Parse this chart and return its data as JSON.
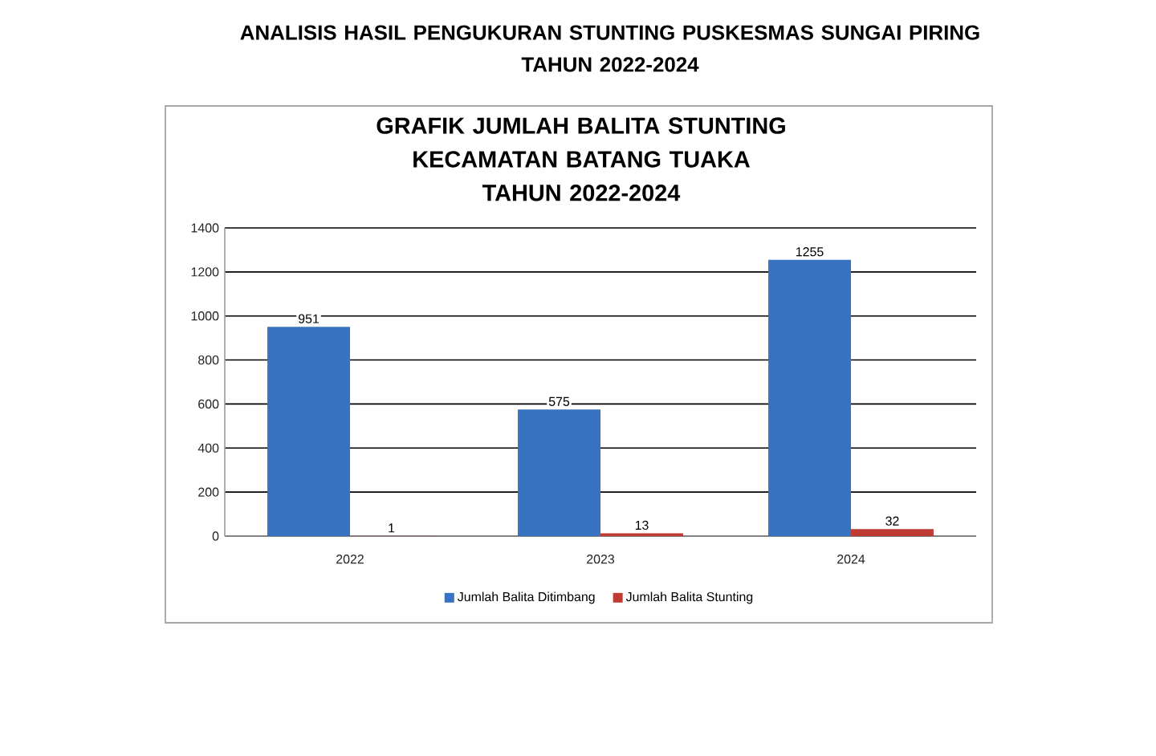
{
  "chart_data": {
    "type": "bar",
    "title": "ANALISIS HASIL PENGUKURAN STUNTING PUSKESMAS SUNGAI PIRING TAHUN 2022-2024",
    "subtitle": "GRAFIK JUMLAH BALITA STUNTING KECAMATAN BATANG TUAKA TAHUN 2022-2024",
    "categories": [
      "2022",
      "2023",
      "2024"
    ],
    "series": [
      {
        "name": "Jumlah Balita Ditimbang",
        "color": "#3773c0",
        "values": [
          951,
          575,
          1255
        ]
      },
      {
        "name": "Jumlah Balita Stunting",
        "color": "#bf3a33",
        "values": [
          1,
          13,
          32
        ]
      }
    ],
    "ylim": [
      0,
      1400
    ],
    "yticks": [
      0,
      200,
      400,
      600,
      800,
      1000,
      1200,
      1400
    ],
    "grid": "y",
    "legend": "bottom",
    "data_labels": true
  }
}
